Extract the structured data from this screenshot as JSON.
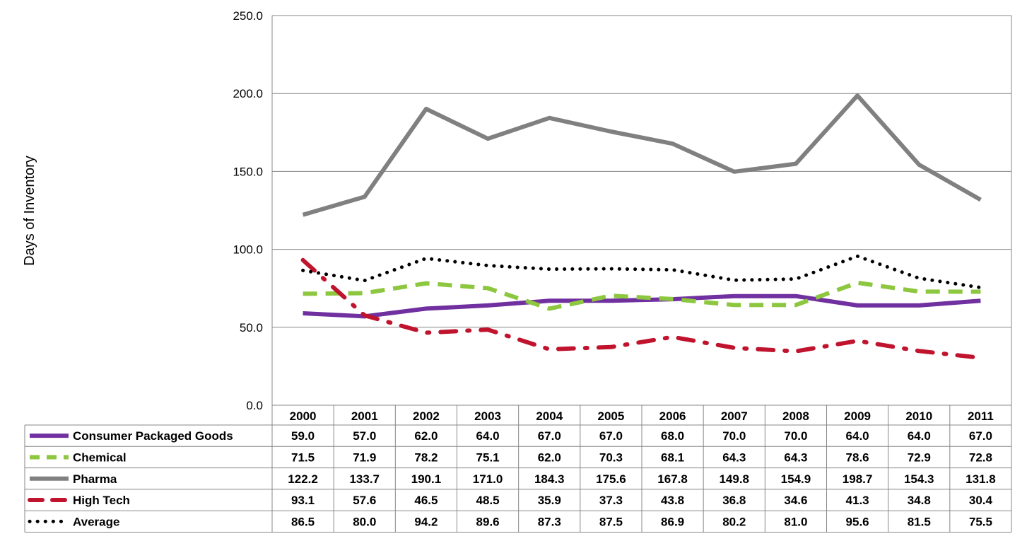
{
  "chart_data": {
    "type": "line",
    "title": "",
    "xlabel": "",
    "ylabel": "Days of Inventory",
    "ylim": [
      0,
      250
    ],
    "yticks": [
      "0.0",
      "50.0",
      "100.0",
      "150.0",
      "200.0",
      "250.0"
    ],
    "grid": true,
    "legend": "data-table-left",
    "categories": [
      "2000",
      "2001",
      "2002",
      "2003",
      "2004",
      "2005",
      "2006",
      "2007",
      "2008",
      "2009",
      "2010",
      "2011"
    ],
    "series": [
      {
        "name": "Consumer Packaged Goods",
        "color": "#7030A0",
        "style": "solid",
        "values": [
          59.0,
          57.0,
          62.0,
          64.0,
          67.0,
          67.0,
          68.0,
          70.0,
          70.0,
          64.0,
          64.0,
          67.0
        ],
        "labels": [
          "59.0",
          "57.0",
          "62.0",
          "64.0",
          "67.0",
          "67.0",
          "68.0",
          "70.0",
          "70.0",
          "64.0",
          "64.0",
          "67.0"
        ]
      },
      {
        "name": "Chemical",
        "color": "#8DC63F",
        "style": "dash",
        "values": [
          71.5,
          71.9,
          78.2,
          75.1,
          62.0,
          70.3,
          68.1,
          64.3,
          64.3,
          78.6,
          72.9,
          72.8
        ],
        "labels": [
          "71.5",
          "71.9",
          "78.2",
          "75.1",
          "62.0",
          "70.3",
          "68.1",
          "64.3",
          "64.3",
          "78.6",
          "72.9",
          "72.8"
        ]
      },
      {
        "name": "Pharma",
        "color": "#808080",
        "style": "solid",
        "values": [
          122.2,
          133.7,
          190.1,
          171.0,
          184.3,
          175.6,
          167.8,
          149.8,
          154.9,
          198.7,
          154.3,
          131.8
        ],
        "labels": [
          "122.2",
          "133.7",
          "190.1",
          "171.0",
          "184.3",
          "175.6",
          "167.8",
          "149.8",
          "154.9",
          "198.7",
          "154.3",
          "131.8"
        ]
      },
      {
        "name": "High Tech",
        "color": "#C0142E",
        "style": "dashdot",
        "values": [
          93.1,
          57.6,
          46.5,
          48.5,
          35.9,
          37.3,
          43.8,
          36.8,
          34.6,
          41.3,
          34.8,
          30.4
        ],
        "labels": [
          "93.1",
          "57.6",
          "46.5",
          "48.5",
          "35.9",
          "37.3",
          "43.8",
          "36.8",
          "34.6",
          "41.3",
          "34.8",
          "30.4"
        ]
      },
      {
        "name": "Average",
        "color": "#000000",
        "style": "dot",
        "values": [
          86.5,
          80.0,
          94.2,
          89.6,
          87.3,
          87.5,
          86.9,
          80.2,
          81.0,
          95.6,
          81.5,
          75.5
        ],
        "labels": [
          "86.5",
          "80.0",
          "94.2",
          "89.6",
          "87.3",
          "87.5",
          "86.9",
          "80.2",
          "81.0",
          "95.6",
          "81.5",
          "75.5"
        ]
      }
    ]
  }
}
